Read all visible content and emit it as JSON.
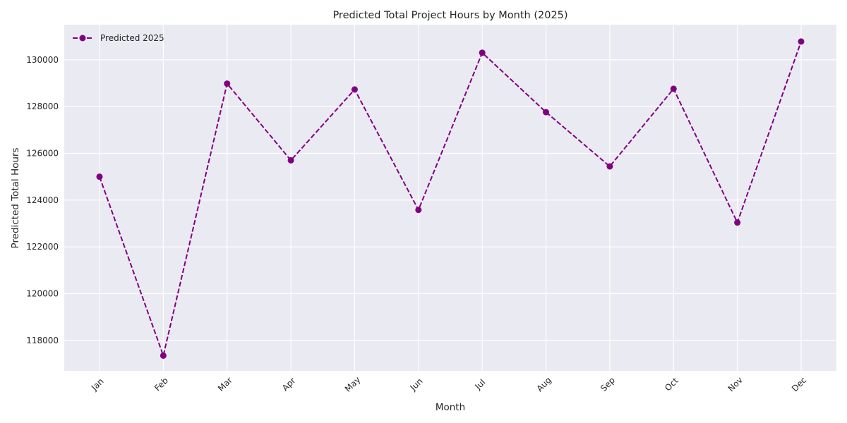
{
  "chart_data": {
    "type": "line",
    "title": "Predicted Total Project Hours by Month (2025)",
    "xlabel": "Month",
    "ylabel": "Predicted Total Hours",
    "categories": [
      "Jan",
      "Feb",
      "Mar",
      "Apr",
      "May",
      "Jun",
      "Jul",
      "Aug",
      "Sep",
      "Oct",
      "Nov",
      "Dec"
    ],
    "series": [
      {
        "name": "Predicted 2025",
        "color": "#800080",
        "line_style": "dashed",
        "marker": "circle",
        "values": [
          125000,
          117350,
          128980,
          125700,
          128730,
          123580,
          130300,
          127760,
          125440,
          128760,
          123040,
          130780
        ]
      }
    ],
    "ylim": [
      116700,
      131500
    ],
    "yticks": [
      118000,
      120000,
      122000,
      124000,
      126000,
      128000,
      130000
    ],
    "grid": true,
    "legend_position": "top-left",
    "background_color": "#eaeaf2",
    "grid_color": "#ffffff",
    "xtick_rotation": 45
  }
}
